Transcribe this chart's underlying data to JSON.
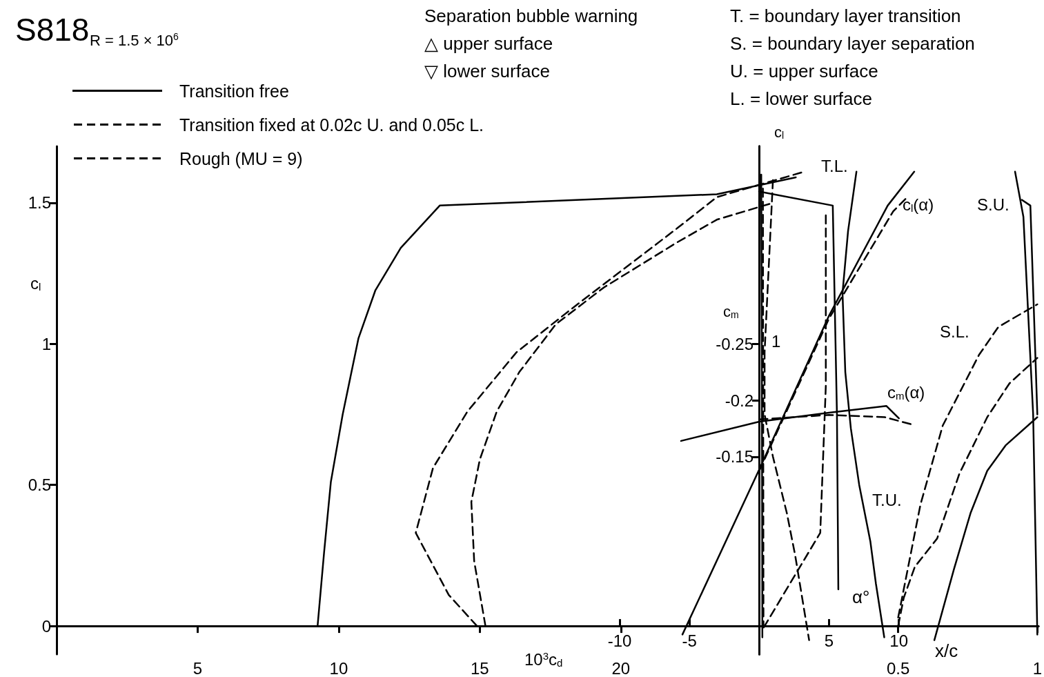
{
  "chart_data": [
    {
      "type": "line",
      "title": "S818",
      "subtitle": "R = 1.5 × 10$^{6}$",
      "xlabel": "10$^{3}$c$_{d}$",
      "ylabel": "c$_{l}$",
      "xlim": [
        0,
        34.8
      ],
      "xticks": [
        5,
        10,
        15,
        20
      ],
      "ylim": [
        -0.1,
        1.7
      ],
      "yticks": [
        0,
        0.5,
        1,
        1.5
      ],
      "marker": "none",
      "legend": "top left",
      "annotations": [
        "Separation bubble warning",
        "△ upper surface",
        "▽ lower surface",
        "T. = boundary layer transition",
        "S. = boundary layer separation",
        "U. = upper surface",
        "L. = lower surface"
      ],
      "series": [
        {
          "name": "Transition free",
          "color": "#000000",
          "line_style": "solid",
          "x": [
            9.25,
            9.48,
            9.72,
            10.14,
            10.7,
            11.3,
            12.2,
            13.58,
            23.4,
            26.2
          ],
          "values": [
            0,
            0.26,
            0.51,
            0.75,
            1.02,
            1.19,
            1.34,
            1.49,
            1.53,
            1.59
          ]
        },
        {
          "name": "Transition fixed at 0.02c U. and 0.05c L.",
          "color": "#000000",
          "line_style": "dashed",
          "x": [
            14.9,
            13.9,
            12.73,
            13.34,
            14.56,
            16.3,
            18.2,
            19.9,
            22.0,
            23.4,
            26.5
          ],
          "values": [
            0,
            0.11,
            0.33,
            0.56,
            0.76,
            0.97,
            1.12,
            1.25,
            1.41,
            1.52,
            1.61
          ]
        },
        {
          "name": "Rough (MU = 9)",
          "color": "#000000",
          "line_style": "dashed",
          "x": [
            15.2,
            14.8,
            14.7,
            15.0,
            15.6,
            16.4,
            17.7,
            19.4,
            22.0,
            23.4,
            25.4
          ],
          "values": [
            0,
            0.23,
            0.44,
            0.59,
            0.76,
            0.9,
            1.07,
            1.2,
            1.36,
            1.44,
            1.5
          ]
        }
      ]
    },
    {
      "type": "line",
      "xlabel": "α°",
      "ylabel": "c$_{m}$",
      "xlim": [
        -10,
        20
      ],
      "xticks": [
        -10,
        -5,
        5,
        10
      ],
      "ylim": [
        0.025,
        -0.425
      ],
      "yticks": [
        -0.15,
        -0.2,
        -0.25
      ],
      "marker": "none",
      "annotations": [
        "c$_{m}$(α)"
      ],
      "series": [
        {
          "color": "#000000",
          "line_style": "solid",
          "x": [
            -5.6,
            0,
            5,
            9.1,
            10
          ],
          "values": [
            -0.164,
            -0.181,
            -0.189,
            -0.195,
            -0.184
          ]
        },
        {
          "color": "#000000",
          "line_style": "dashed",
          "x": [
            0,
            5,
            9,
            11.1
          ],
          "values": [
            -0.183,
            -0.187,
            -0.185,
            -0.178
          ]
        }
      ]
    },
    {
      "type": "line",
      "ylabel": "c$_{l}$",
      "xlim": [
        -10,
        20
      ],
      "ylim": [
        -0.1,
        1.7
      ],
      "tick_labels": false,
      "marker": "none",
      "annotations": [
        "c$_{l}$(α)",
        "1"
      ],
      "series": [
        {
          "color": "#000000",
          "line_style": "solid",
          "x": [
            -5.5,
            0,
            5,
            9.2,
            11.1
          ],
          "values": [
            -0.03,
            0.555,
            1.1,
            1.49,
            1.61
          ]
        },
        {
          "color": "#000000",
          "line_style": "dashed",
          "x": [
            0,
            5,
            9.6,
            10.6
          ],
          "values": [
            0.55,
            1.09,
            1.47,
            1.52
          ]
        }
      ]
    },
    {
      "type": "line",
      "xlabel": "x/c",
      "xlim": [
        0,
        1
      ],
      "xticks": [
        0.5,
        1
      ],
      "ylim": [
        -0.1,
        1.7
      ],
      "tick_labels": "x",
      "marker": "none",
      "annotations": [
        "T.L.",
        "T.U.",
        "S.U.",
        "S.L."
      ],
      "series": [
        {
          "color": "#000000",
          "line_style": "solid",
          "x": [
            0.35,
            0.32,
            0.3,
            0.31,
            0.33,
            0.36,
            0.4,
            0.42,
            0.45
          ],
          "values": [
            1.61,
            1.4,
            1.18,
            0.9,
            0.7,
            0.5,
            0.3,
            0.15,
            -0.04
          ]
        },
        {
          "color": "#000000",
          "line_style": "solid",
          "x": [
            0,
            0.265,
            0.28,
            0.285
          ],
          "values": [
            1.54,
            1.49,
            0.75,
            0.13
          ]
        },
        {
          "color": "#000000",
          "line_style": "solid",
          "x": [
            0.008,
            0.01,
            0.012
          ],
          "values": [
            1.6,
            1.0,
            -0.04
          ]
        },
        {
          "color": "#000000",
          "line_style": "dashed",
          "x": [
            0.017,
            0.22,
            0.24,
            0.24
          ],
          "values": [
            -0.005,
            0.33,
            0.85,
            1.46
          ]
        },
        {
          "color": "#000000",
          "line_style": "dashed",
          "x": [
            0.05,
            0.02,
            0.02,
            0.05,
            0.1,
            0.13,
            0.18
          ],
          "values": [
            1.58,
            0.97,
            0.75,
            0.6,
            0.4,
            0.25,
            -0.05
          ]
        },
        {
          "color": "#000000",
          "line_style": "dashed",
          "x": [
            0.014,
            0.016
          ],
          "values": [
            1.55,
            0.0
          ]
        },
        {
          "color": "#000000",
          "line_style": "solid",
          "x": [
            0.92,
            0.95,
            0.985,
            1.0
          ],
          "values": [
            1.61,
            1.45,
            0.75,
            -0.03
          ]
        },
        {
          "color": "#000000",
          "line_style": "solid",
          "x": [
            0.945,
            0.975,
            1.0
          ],
          "values": [
            1.51,
            1.49,
            0.75
          ]
        },
        {
          "color": "#000000",
          "line_style": "solid",
          "x": [
            0.63,
            0.7,
            0.76,
            0.82,
            0.886,
            1.0
          ],
          "values": [
            -0.05,
            0.2,
            0.4,
            0.55,
            0.64,
            0.74
          ]
        },
        {
          "color": "#000000",
          "line_style": "dashed",
          "x": [
            0.5,
            0.52,
            0.56,
            0.64,
            0.72,
            0.82,
            0.9,
            1.0
          ],
          "values": [
            0.0,
            0.1,
            0.21,
            0.31,
            0.54,
            0.74,
            0.86,
            0.95
          ]
        },
        {
          "color": "#000000",
          "line_style": "dashed",
          "x": [
            0.5,
            0.58,
            0.66,
            0.79,
            0.86,
            1.0
          ],
          "values": [
            0.03,
            0.43,
            0.71,
            0.96,
            1.06,
            1.14
          ]
        }
      ]
    }
  ]
}
